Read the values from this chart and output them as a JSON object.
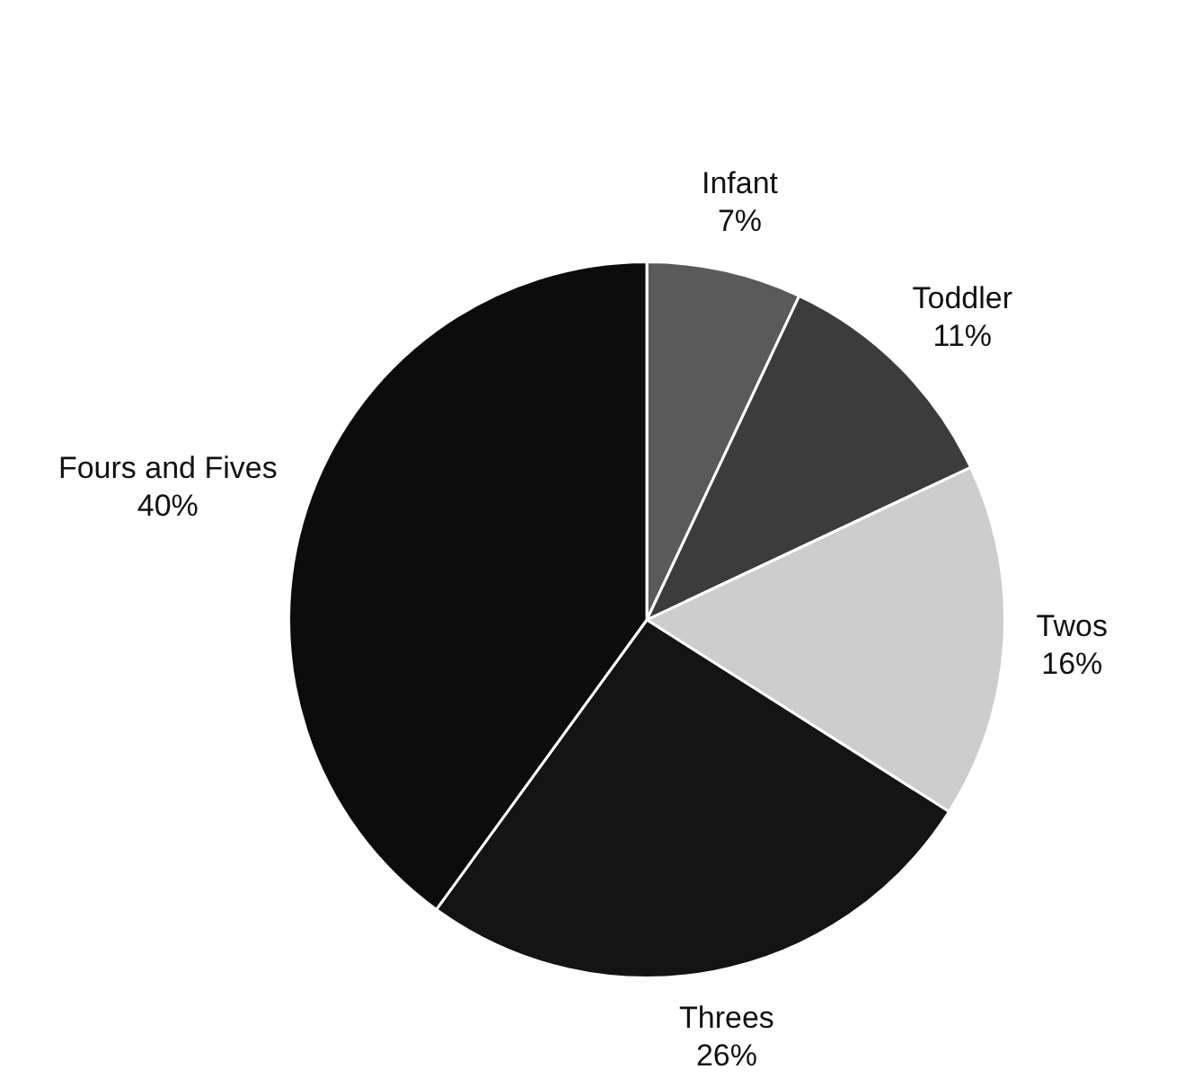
{
  "chart_data": {
    "type": "pie",
    "categories": [
      "Infant",
      "Toddler",
      "Twos",
      "Threes",
      "Fours and Fives"
    ],
    "values": [
      7,
      11,
      16,
      26,
      40
    ],
    "value_labels": [
      "7%",
      "11%",
      "16%",
      "26%",
      "40%"
    ],
    "colors": [
      "#5a5a5a",
      "#3c3c3c",
      "#cdcdcd",
      "#141414",
      "#0c0c0c"
    ],
    "legend": false
  }
}
